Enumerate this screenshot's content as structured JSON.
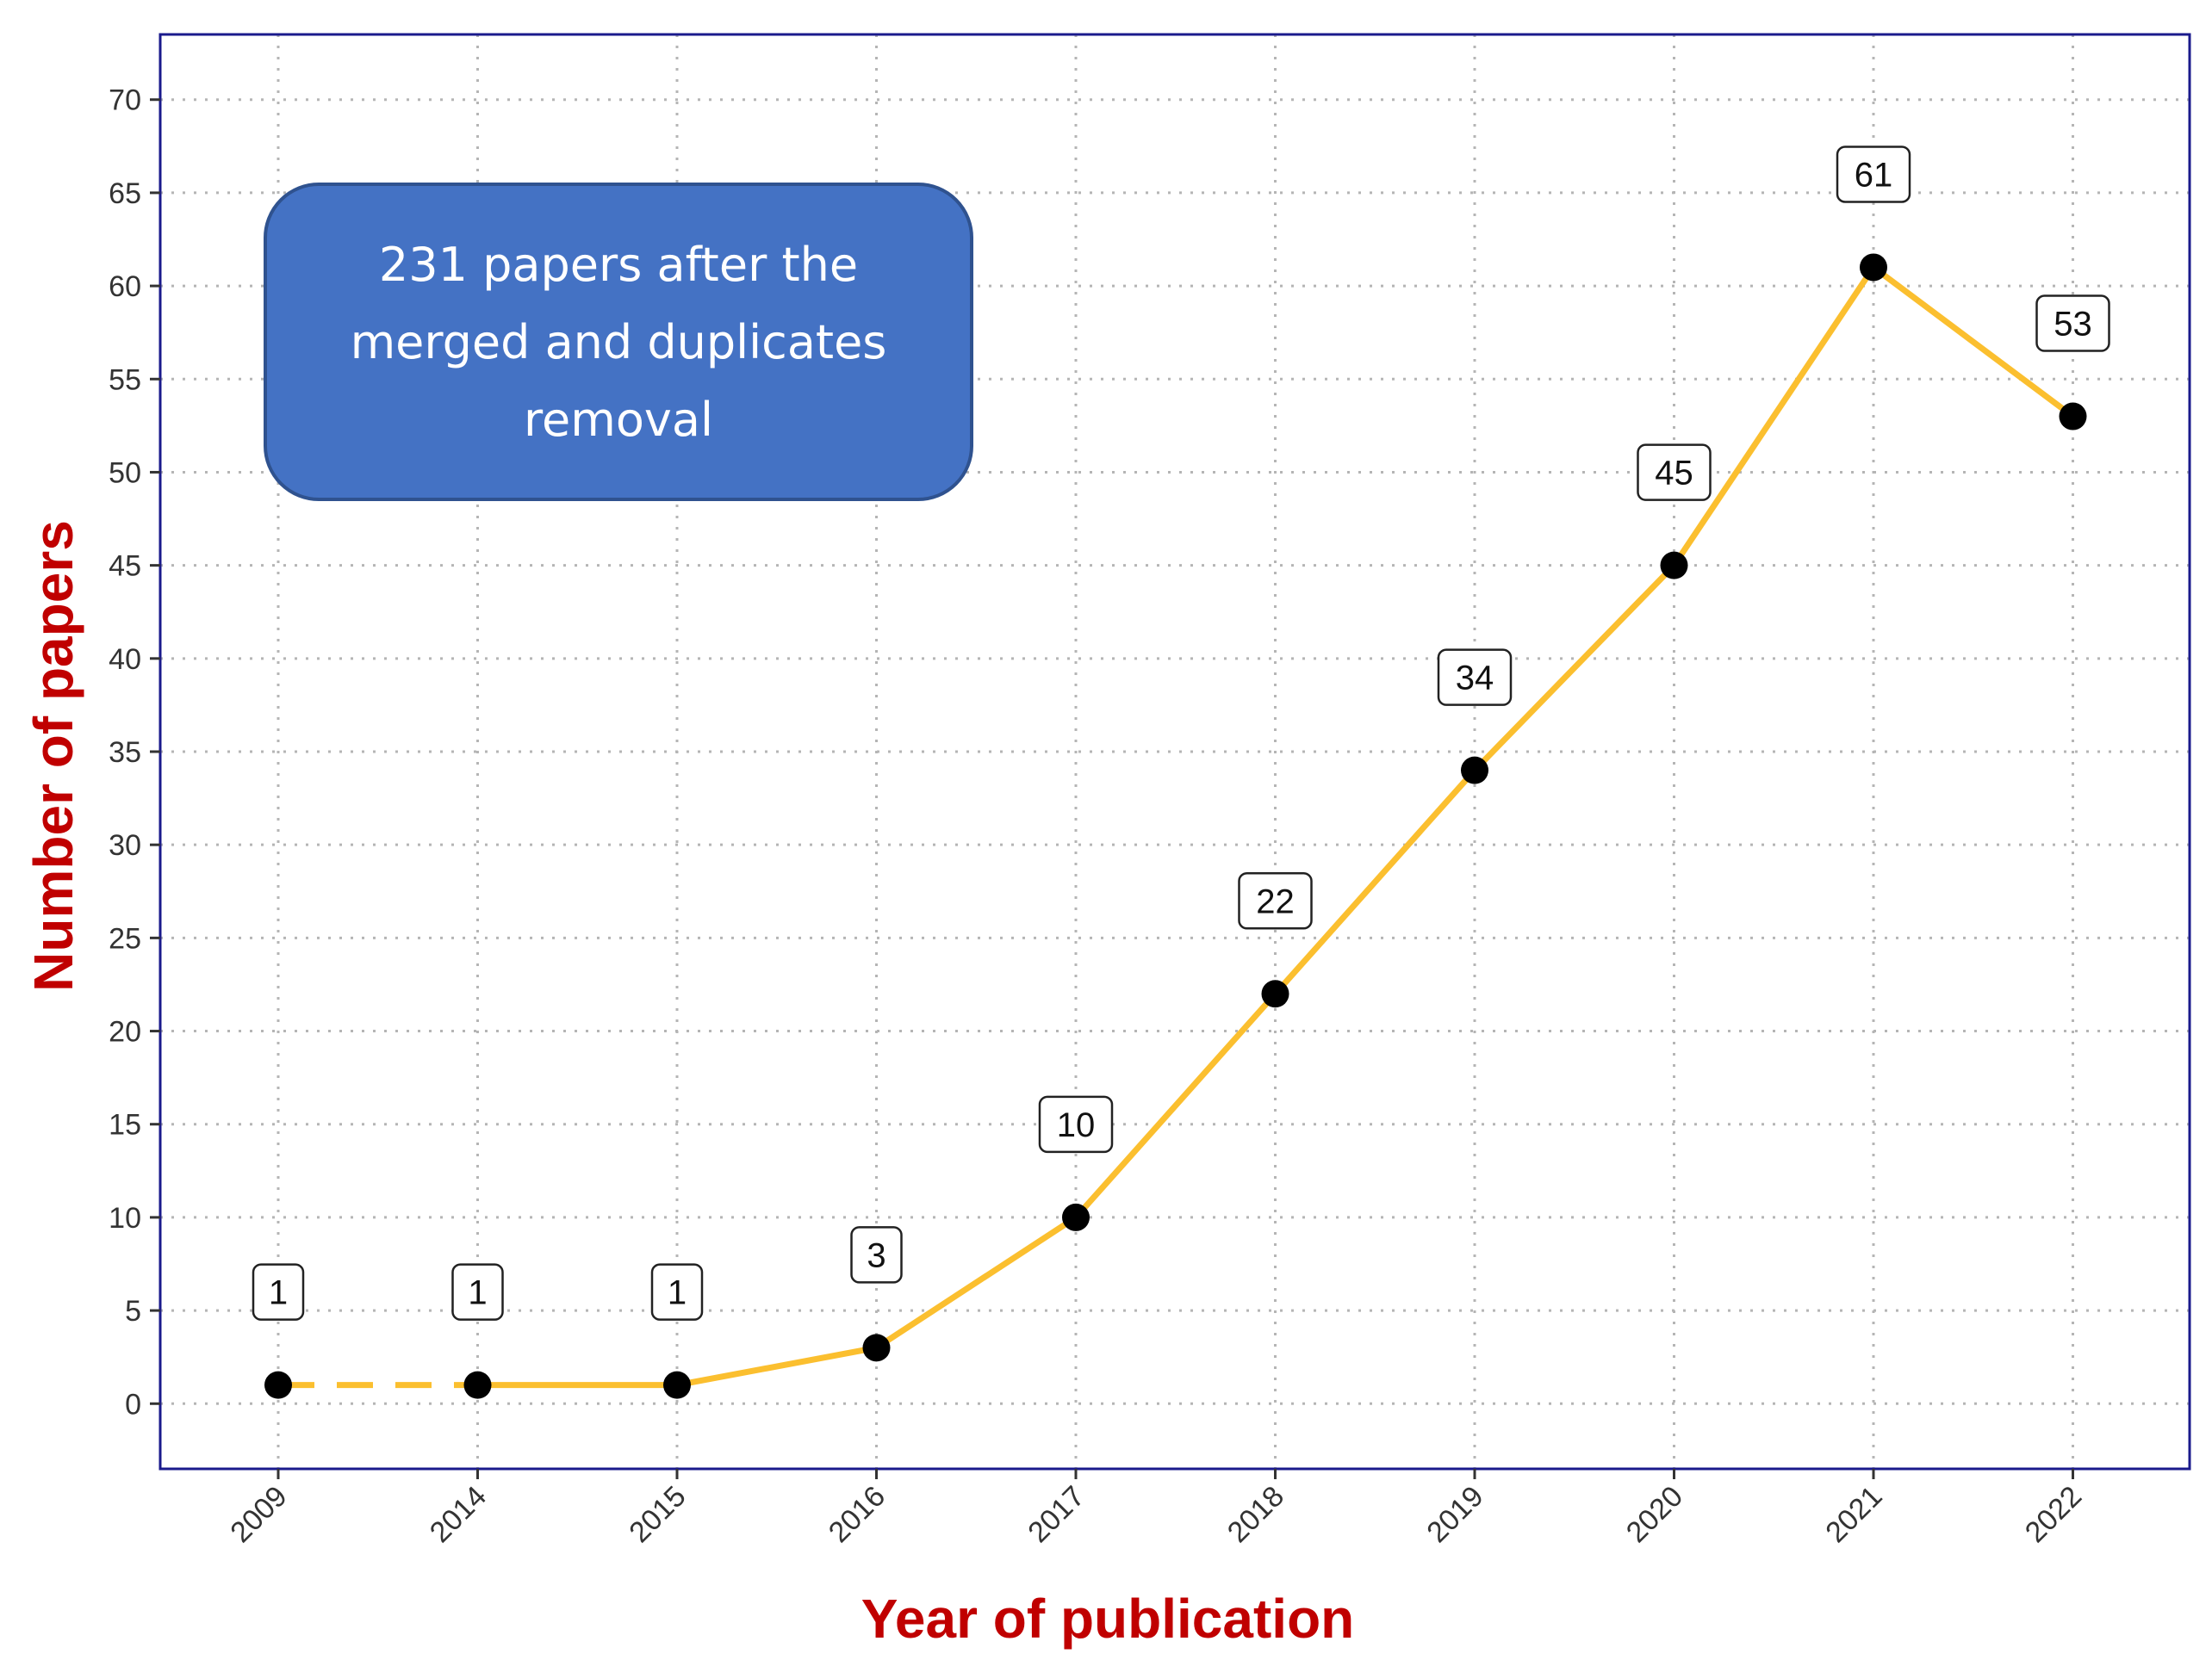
{
  "chart_data": {
    "type": "line",
    "title": "",
    "xlabel": "Year of publication",
    "ylabel": "Number of papers",
    "categories": [
      "2009",
      "2014",
      "2015",
      "2016",
      "2017",
      "2018",
      "2019",
      "2020",
      "2021",
      "2022"
    ],
    "series": [
      {
        "values": [
          1,
          1,
          1,
          3,
          10,
          22,
          34,
          45,
          61,
          53
        ],
        "color": "#fbbf2f"
      }
    ],
    "data_labels": [
      "1",
      "1",
      "1",
      "3",
      "10",
      "22",
      "34",
      "45",
      "61",
      "53"
    ],
    "yticks": [
      0,
      5,
      10,
      15,
      20,
      25,
      30,
      35,
      40,
      45,
      50,
      55,
      60,
      65,
      70
    ],
    "ylim": [
      -3.5,
      73.5
    ],
    "grid": true,
    "grid_style": "dotted",
    "broken_segment": "dashed line between 2009 and 2014",
    "annotation": {
      "lines": [
        "231 papers after the",
        "merged and duplicates",
        "removal"
      ],
      "color": "#4472c4"
    },
    "colors": {
      "line": "#fbbf2f",
      "points": "#000000",
      "axis_titles": "#c00000",
      "panel_border": "#1a1a8c"
    }
  }
}
